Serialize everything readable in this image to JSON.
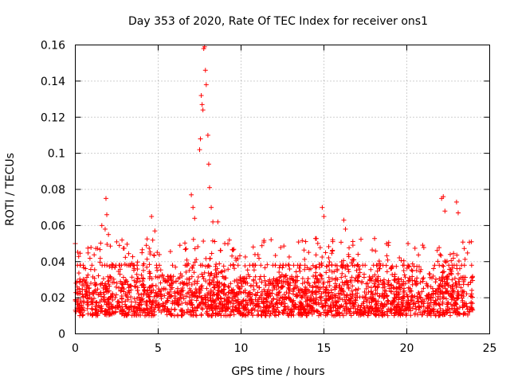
{
  "chart_data": {
    "type": "scatter",
    "title": "Day 353 of 2020, Rate Of TEC Index for receiver ons1",
    "xlabel": "GPS time / hours",
    "ylabel": "ROTI / TECUs",
    "xlim": [
      0,
      25
    ],
    "ylim": [
      0,
      0.16
    ],
    "xticks": [
      0,
      5,
      10,
      15,
      20,
      25
    ],
    "yticks": [
      0,
      0.02,
      0.04,
      0.06,
      0.08,
      0.1,
      0.12,
      0.14,
      0.16
    ],
    "xtick_labels": [
      "0",
      "5",
      "10",
      "15",
      "20",
      "25"
    ],
    "ytick_labels": [
      "0",
      "0.02",
      "0.04",
      "0.06",
      "0.08",
      "0.1",
      "0.12",
      "0.14",
      "0.16"
    ],
    "grid": true,
    "marker": "+",
    "series_color": "#ff0000",
    "series": [
      {
        "name": "ROTI",
        "x_range_hours": [
          0,
          24
        ],
        "baseline_min": 0.01,
        "baseline_max": 0.035,
        "notable_points": [
          {
            "x": 0.0,
            "y": 0.05
          },
          {
            "x": 1.6,
            "y": 0.06
          },
          {
            "x": 1.8,
            "y": 0.058
          },
          {
            "x": 1.85,
            "y": 0.075
          },
          {
            "x": 1.9,
            "y": 0.066
          },
          {
            "x": 2.0,
            "y": 0.055
          },
          {
            "x": 4.6,
            "y": 0.065
          },
          {
            "x": 4.8,
            "y": 0.057
          },
          {
            "x": 7.0,
            "y": 0.077
          },
          {
            "x": 7.1,
            "y": 0.07
          },
          {
            "x": 7.2,
            "y": 0.064
          },
          {
            "x": 7.5,
            "y": 0.102
          },
          {
            "x": 7.55,
            "y": 0.108
          },
          {
            "x": 7.6,
            "y": 0.132
          },
          {
            "x": 7.65,
            "y": 0.127
          },
          {
            "x": 7.7,
            "y": 0.124
          },
          {
            "x": 7.75,
            "y": 0.158
          },
          {
            "x": 7.8,
            "y": 0.159
          },
          {
            "x": 7.85,
            "y": 0.146
          },
          {
            "x": 7.9,
            "y": 0.138
          },
          {
            "x": 8.0,
            "y": 0.11
          },
          {
            "x": 8.05,
            "y": 0.094
          },
          {
            "x": 8.1,
            "y": 0.081
          },
          {
            "x": 8.2,
            "y": 0.07
          },
          {
            "x": 8.3,
            "y": 0.062
          },
          {
            "x": 8.6,
            "y": 0.062
          },
          {
            "x": 14.9,
            "y": 0.07
          },
          {
            "x": 15.0,
            "y": 0.065
          },
          {
            "x": 16.2,
            "y": 0.063
          },
          {
            "x": 16.3,
            "y": 0.058
          },
          {
            "x": 22.1,
            "y": 0.075
          },
          {
            "x": 22.2,
            "y": 0.076
          },
          {
            "x": 22.3,
            "y": 0.068
          },
          {
            "x": 23.0,
            "y": 0.073
          },
          {
            "x": 23.1,
            "y": 0.067
          }
        ]
      }
    ]
  }
}
